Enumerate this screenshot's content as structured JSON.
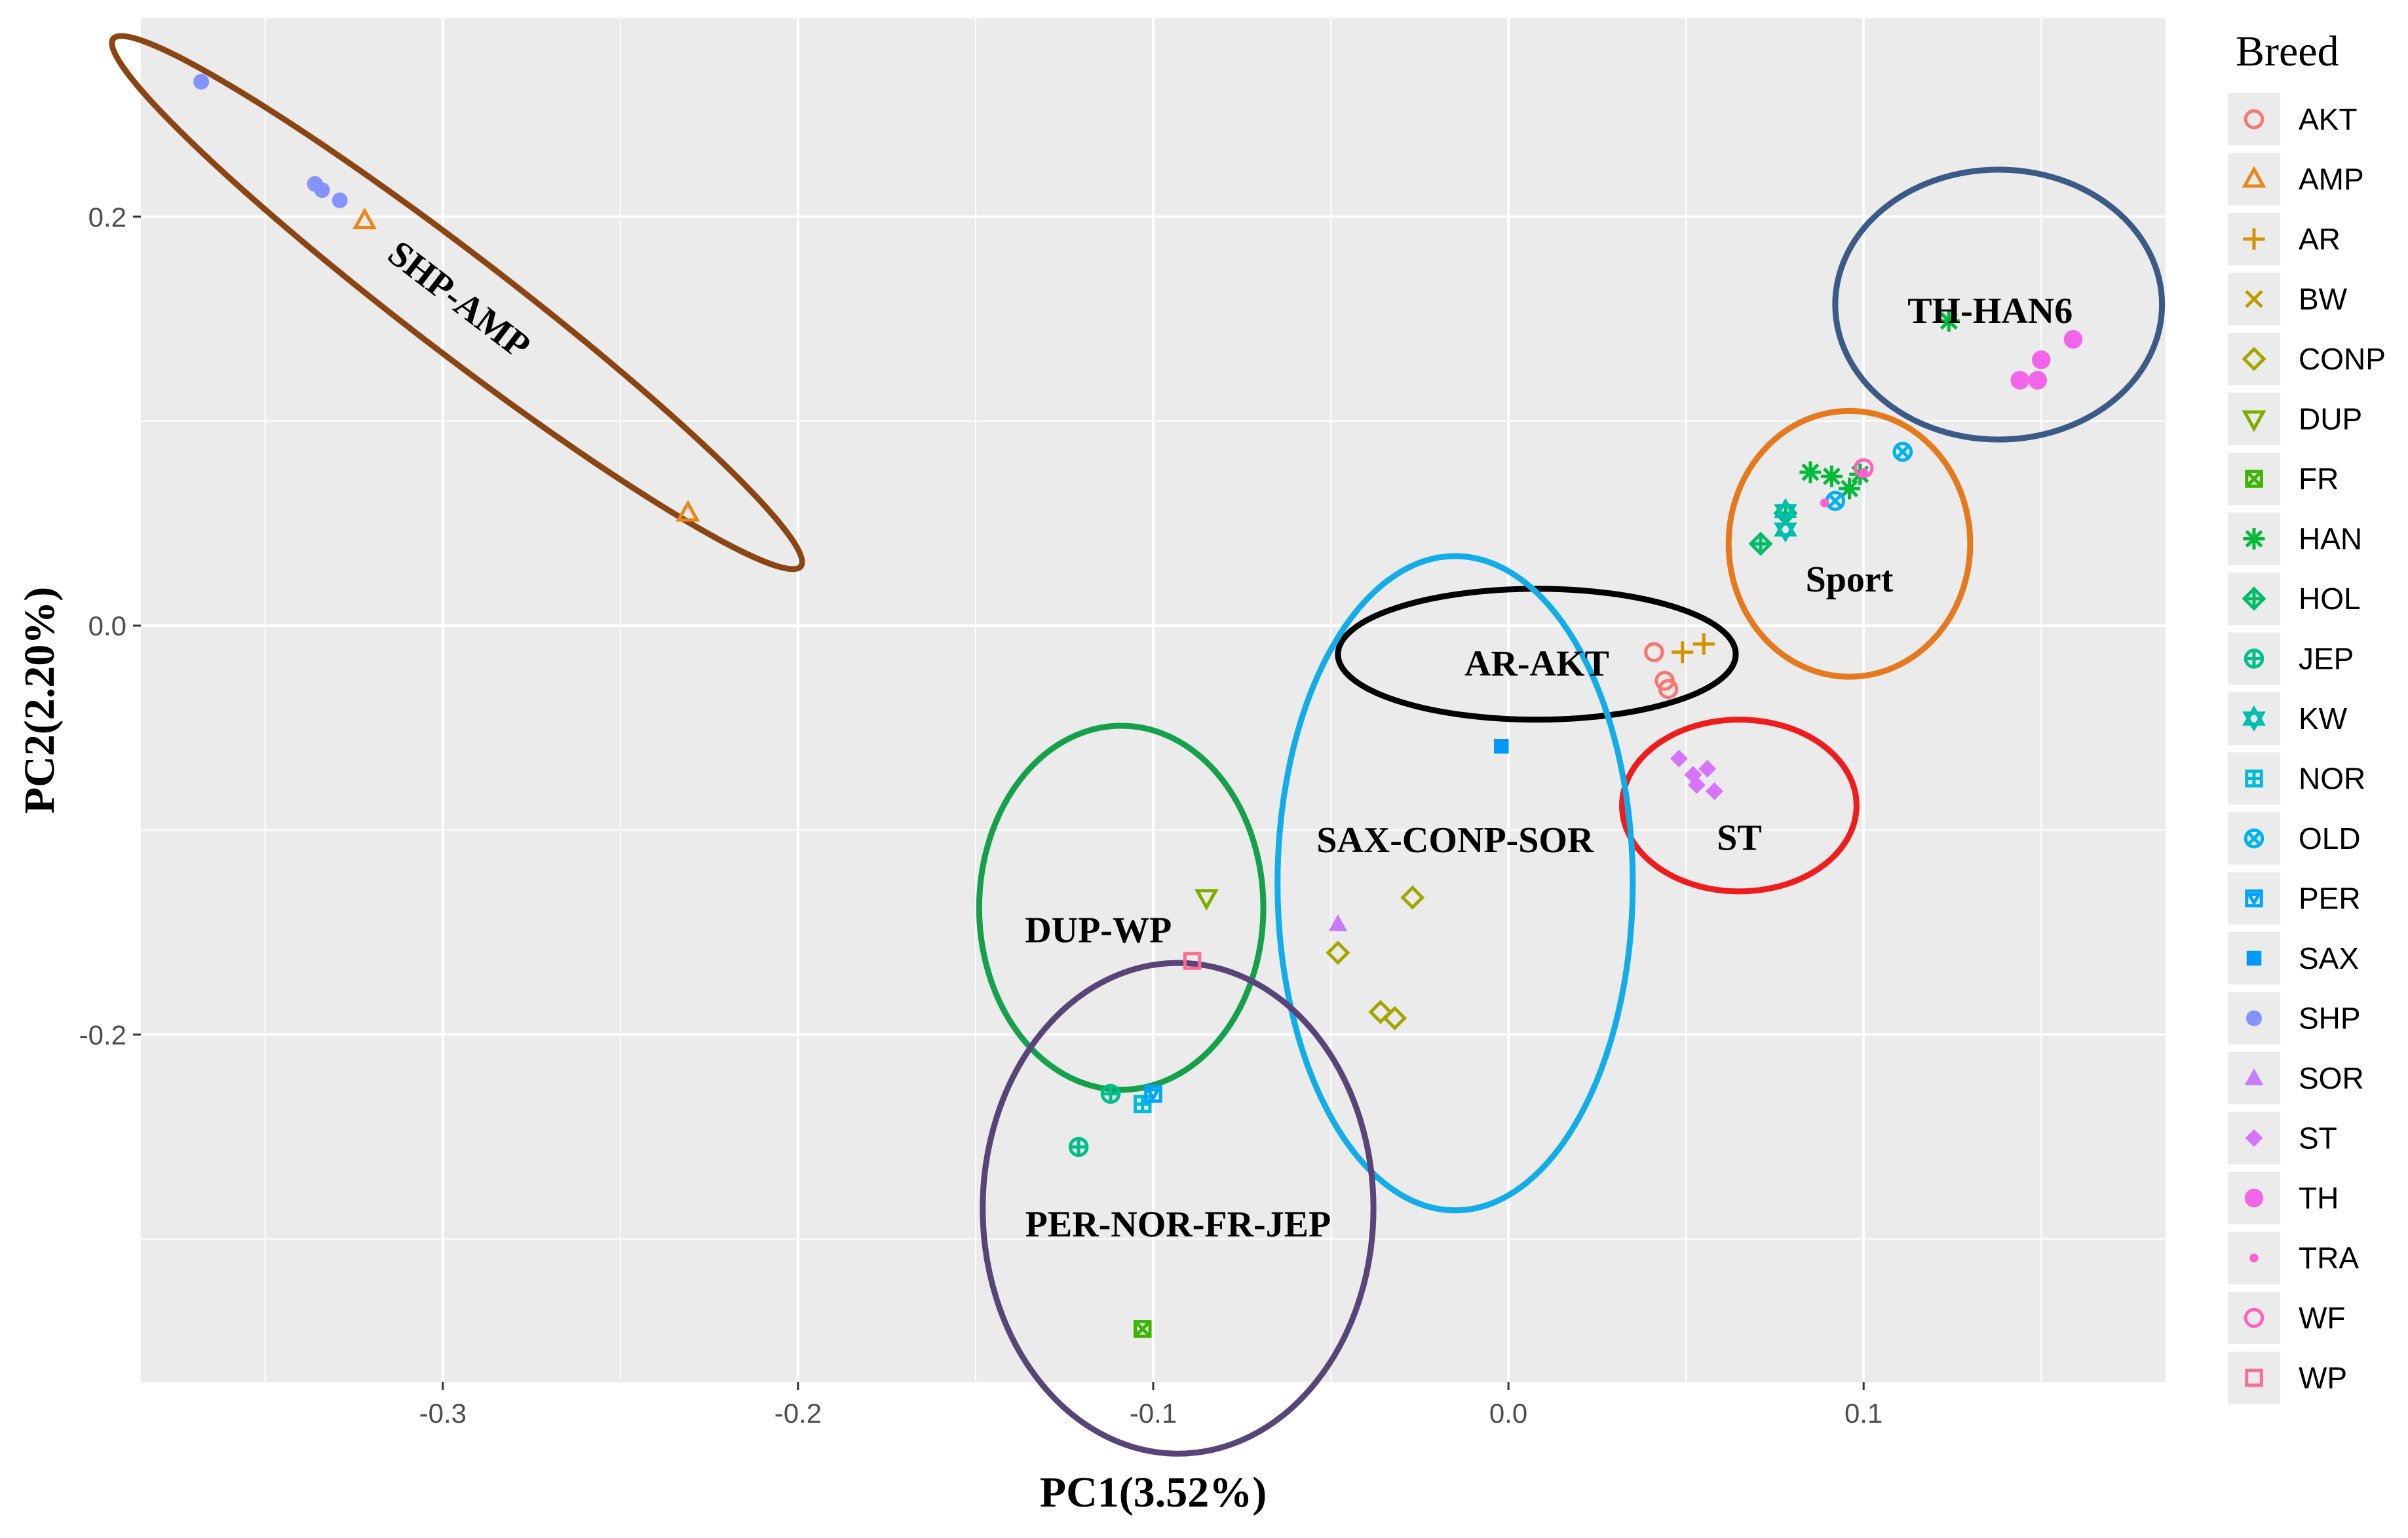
{
  "chart_data": {
    "type": "scatter",
    "title": "",
    "xlabel": "PC1(3.52%)",
    "ylabel": "PC2(2.20%)",
    "xlim": [
      -0.385,
      0.185
    ],
    "ylim": [
      -0.37,
      0.297
    ],
    "x_ticks": [
      -0.3,
      -0.2,
      -0.1,
      0.0,
      0.1
    ],
    "x_tick_labels": [
      "-0.3",
      "-0.2",
      "-0.1",
      "0.0",
      "0.1"
    ],
    "y_ticks": [
      -0.2,
      0.0,
      0.2
    ],
    "y_tick_labels": [
      "-0.2",
      "0.0",
      "0.2"
    ],
    "grid": true,
    "legend": {
      "title": "Breed",
      "placement": "right",
      "entries": [
        {
          "name": "AKT",
          "color": "#F8766D",
          "shape": "circle-open"
        },
        {
          "name": "AMP",
          "color": "#E7861B",
          "shape": "triangle-open"
        },
        {
          "name": "AR",
          "color": "#D39200",
          "shape": "plus"
        },
        {
          "name": "BW",
          "color": "#BB9D00",
          "shape": "cross"
        },
        {
          "name": "CONP",
          "color": "#A3A500",
          "shape": "diamond-open"
        },
        {
          "name": "DUP",
          "color": "#7CAE00",
          "shape": "triangle-down-open"
        },
        {
          "name": "FR",
          "color": "#39B600",
          "shape": "square-cross"
        },
        {
          "name": "HAN",
          "color": "#00BA38",
          "shape": "asterisk"
        },
        {
          "name": "HOL",
          "color": "#00BE67",
          "shape": "diamond-plus"
        },
        {
          "name": "JEP",
          "color": "#00BF8C",
          "shape": "circle-plus"
        },
        {
          "name": "KW",
          "color": "#00BFAE",
          "shape": "star-of-david"
        },
        {
          "name": "NOR",
          "color": "#00BBDA",
          "shape": "square-plus"
        },
        {
          "name": "OLD",
          "color": "#00B2F3",
          "shape": "circle-cross"
        },
        {
          "name": "PER",
          "color": "#00A5FF",
          "shape": "square-triangle"
        },
        {
          "name": "SAX",
          "color": "#0099F8",
          "shape": "square"
        },
        {
          "name": "SHP",
          "color": "#8494FF",
          "shape": "circle"
        },
        {
          "name": "SOR",
          "color": "#C77CFF",
          "shape": "triangle"
        },
        {
          "name": "ST",
          "color": "#D774FD",
          "shape": "diamond"
        },
        {
          "name": "TH",
          "color": "#F166E8",
          "shape": "circle-big"
        },
        {
          "name": "TRA",
          "color": "#FD61D1",
          "shape": "dot"
        },
        {
          "name": "WF",
          "color": "#FF62BC",
          "shape": "circle-open"
        },
        {
          "name": "WP",
          "color": "#FF6C91",
          "shape": "square-open"
        }
      ]
    },
    "series": [
      {
        "name": "AKT",
        "points": [
          [
            0.041,
            -0.013
          ],
          [
            0.044,
            -0.027
          ],
          [
            0.045,
            -0.031
          ]
        ]
      },
      {
        "name": "AMP",
        "points": [
          [
            -0.322,
            0.198
          ],
          [
            -0.231,
            0.055
          ]
        ]
      },
      {
        "name": "AR",
        "points": [
          [
            0.049,
            -0.013
          ],
          [
            0.055,
            -0.009
          ]
        ]
      },
      {
        "name": "CONP",
        "points": [
          [
            -0.027,
            -0.133
          ],
          [
            -0.048,
            -0.16
          ],
          [
            -0.036,
            -0.189
          ],
          [
            -0.032,
            -0.192
          ]
        ]
      },
      {
        "name": "DUP",
        "points": [
          [
            -0.085,
            -0.133
          ]
        ]
      },
      {
        "name": "FR",
        "points": [
          [
            -0.103,
            -0.344
          ]
        ]
      },
      {
        "name": "HAN",
        "points": [
          [
            0.085,
            0.075
          ],
          [
            0.091,
            0.073
          ],
          [
            0.096,
            0.067
          ],
          [
            0.099,
            0.074
          ],
          [
            0.124,
            0.149
          ]
        ]
      },
      {
        "name": "HOL",
        "points": [
          [
            0.071,
            0.04
          ],
          [
            0.078,
            0.055
          ]
        ]
      },
      {
        "name": "JEP",
        "points": [
          [
            -0.121,
            -0.255
          ],
          [
            -0.112,
            -0.229
          ]
        ]
      },
      {
        "name": "KW",
        "points": [
          [
            0.078,
            0.047
          ],
          [
            0.078,
            0.056
          ]
        ]
      },
      {
        "name": "NOR",
        "points": [
          [
            -0.103,
            -0.234
          ]
        ]
      },
      {
        "name": "OLD",
        "points": [
          [
            0.092,
            0.061
          ],
          [
            0.111,
            0.085
          ]
        ]
      },
      {
        "name": "PER",
        "points": [
          [
            -0.1,
            -0.229
          ]
        ]
      },
      {
        "name": "SAX",
        "points": [
          [
            -0.002,
            -0.059
          ]
        ]
      },
      {
        "name": "SHP",
        "points": [
          [
            -0.368,
            0.266
          ],
          [
            -0.336,
            0.216
          ],
          [
            -0.334,
            0.213
          ],
          [
            -0.329,
            0.208
          ]
        ]
      },
      {
        "name": "SOR",
        "points": [
          [
            -0.048,
            -0.146
          ]
        ]
      },
      {
        "name": "ST",
        "points": [
          [
            0.048,
            -0.065
          ],
          [
            0.052,
            -0.073
          ],
          [
            0.053,
            -0.078
          ],
          [
            0.056,
            -0.07
          ],
          [
            0.058,
            -0.081
          ]
        ]
      },
      {
        "name": "TH",
        "points": [
          [
            0.144,
            0.12
          ],
          [
            0.149,
            0.12
          ],
          [
            0.15,
            0.13
          ],
          [
            0.159,
            0.14
          ]
        ]
      },
      {
        "name": "TRA",
        "points": [
          [
            0.089,
            0.06
          ],
          [
            0.1,
            0.075
          ]
        ]
      },
      {
        "name": "WF",
        "points": [
          [
            0.1,
            0.077
          ]
        ]
      },
      {
        "name": "WP",
        "points": [
          [
            -0.089,
            -0.164
          ]
        ]
      }
    ],
    "clusters": [
      {
        "label": "SHP-AMP",
        "color": "#8B4513",
        "cx": -0.296,
        "cy": 0.158,
        "rx": 0.122,
        "ry": 0.024,
        "angle_deg": 37.5,
        "label_angle_deg": 37.5
      },
      {
        "label": "TH-HAN6",
        "color": "#3B5A85",
        "cx": 0.138,
        "cy": 0.157,
        "rx": 0.046,
        "ry": 0.066,
        "angle_deg": 0,
        "label_angle_deg": 0
      },
      {
        "label": "Sport",
        "color": "#E6791D",
        "cx": 0.096,
        "cy": 0.04,
        "rx": 0.034,
        "ry": 0.065,
        "angle_deg": 0,
        "label_angle_deg": 0
      },
      {
        "label": "AR-AKT",
        "color": "#000000",
        "cx": 0.008,
        "cy": -0.014,
        "rx": 0.056,
        "ry": 0.032,
        "angle_deg": 0,
        "label_angle_deg": 0
      },
      {
        "label": "ST",
        "color": "#EE1C1C",
        "cx": 0.065,
        "cy": -0.088,
        "rx": 0.033,
        "ry": 0.042,
        "angle_deg": 0,
        "label_angle_deg": 0
      },
      {
        "label": "SAX-CONP-SOR",
        "color": "#12ADE8",
        "cx": -0.015,
        "cy": -0.126,
        "rx": 0.05,
        "ry": 0.16,
        "angle_deg": 0,
        "label_angle_deg": 0
      },
      {
        "label": "DUP-WP",
        "color": "#15A14B",
        "cx": -0.109,
        "cy": -0.138,
        "rx": 0.04,
        "ry": 0.089,
        "angle_deg": 0,
        "label_angle_deg": 0
      },
      {
        "label": "PER-NOR-FR-JEP",
        "color": "#594478",
        "cx": -0.093,
        "cy": -0.285,
        "rx": 0.055,
        "ry": 0.12,
        "angle_deg": 0,
        "label_angle_deg": 0
      }
    ]
  }
}
